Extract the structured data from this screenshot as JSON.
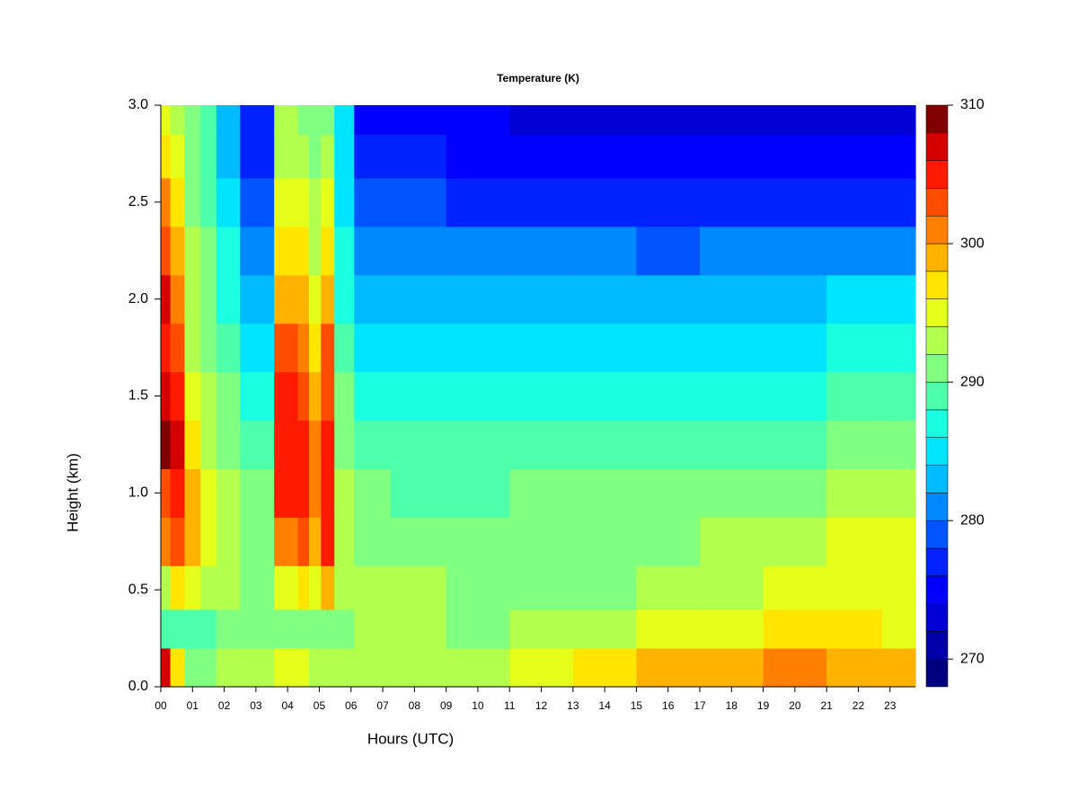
{
  "chart_data": {
    "type": "contour",
    "title": "Temperature (K)",
    "x_label": "Hours (UTC)",
    "y_label": "Height (km)",
    "x": [
      0.1,
      0.5,
      1.0,
      1.5,
      2.0,
      3.0,
      4.15,
      4.5,
      4.85,
      5.25,
      5.7,
      6.5,
      8,
      10,
      12,
      14,
      16,
      18,
      20,
      22,
      23.5
    ],
    "y": [
      0.1,
      0.3,
      0.5,
      0.75,
      1.0,
      1.25,
      1.5,
      1.75,
      2.0,
      2.25,
      2.5,
      2.75,
      2.95
    ],
    "z": [
      [
        306,
        296,
        290,
        290,
        292,
        292,
        294,
        294,
        292,
        292,
        292,
        292,
        292,
        292,
        294,
        296,
        298,
        298,
        300,
        298,
        298
      ],
      [
        288,
        288,
        288,
        288,
        290,
        290,
        290,
        290,
        290,
        290,
        290,
        292,
        292,
        290,
        292,
        292,
        294,
        294,
        296,
        296,
        294
      ],
      [
        292,
        296,
        294,
        292,
        292,
        290,
        294,
        296,
        294,
        298,
        292,
        292,
        292,
        290,
        290,
        290,
        292,
        292,
        294,
        294,
        294
      ],
      [
        300,
        302,
        298,
        294,
        292,
        290,
        300,
        302,
        298,
        304,
        292,
        290,
        290,
        290,
        290,
        290,
        290,
        292,
        292,
        294,
        294
      ],
      [
        302,
        304,
        298,
        294,
        292,
        290,
        304,
        304,
        300,
        304,
        292,
        290,
        288,
        288,
        290,
        290,
        290,
        290,
        290,
        292,
        292
      ],
      [
        308,
        306,
        296,
        292,
        290,
        288,
        304,
        304,
        300,
        304,
        290,
        288,
        288,
        288,
        288,
        288,
        288,
        288,
        288,
        290,
        290
      ],
      [
        306,
        304,
        294,
        292,
        290,
        286,
        304,
        302,
        298,
        302,
        290,
        286,
        286,
        286,
        286,
        286,
        286,
        286,
        286,
        288,
        288
      ],
      [
        304,
        302,
        292,
        290,
        288,
        284,
        302,
        300,
        296,
        302,
        288,
        284,
        284,
        284,
        284,
        284,
        284,
        284,
        284,
        286,
        286
      ],
      [
        306,
        300,
        292,
        290,
        286,
        282,
        298,
        298,
        294,
        298,
        286,
        282,
        282,
        282,
        282,
        282,
        282,
        282,
        282,
        284,
        284
      ],
      [
        302,
        298,
        292,
        290,
        286,
        280,
        296,
        296,
        292,
        296,
        286,
        280,
        280,
        280,
        280,
        280,
        278,
        280,
        280,
        280,
        280
      ],
      [
        300,
        296,
        290,
        288,
        284,
        278,
        294,
        294,
        292,
        294,
        284,
        278,
        278,
        276,
        276,
        276,
        276,
        276,
        276,
        276,
        276
      ],
      [
        296,
        294,
        290,
        288,
        282,
        276,
        292,
        292,
        290,
        292,
        284,
        276,
        276,
        274,
        274,
        274,
        274,
        274,
        274,
        274,
        274
      ],
      [
        294,
        292,
        290,
        288,
        282,
        276,
        292,
        290,
        290,
        290,
        284,
        274,
        274,
        274,
        272,
        272,
        272,
        272,
        272,
        272,
        272
      ]
    ],
    "levels": [
      268,
      270,
      272,
      274,
      276,
      278,
      280,
      282,
      284,
      286,
      288,
      290,
      292,
      294,
      296,
      298,
      300,
      302,
      304,
      306,
      308,
      310
    ],
    "colors": [
      "#00007F",
      "#0000AA",
      "#0000D4",
      "#0000FF",
      "#0022FF",
      "#0055FF",
      "#0088FF",
      "#00BBFF",
      "#00E5FF",
      "#1AFFE0",
      "#4DFFAA",
      "#80FF80",
      "#B3FF4D",
      "#E6FF1A",
      "#FFE600",
      "#FFB300",
      "#FF8000",
      "#FF4D00",
      "#FF1A00",
      "#D40000",
      "#800000"
    ],
    "xlim": [
      0,
      23.8
    ],
    "ylim": [
      0,
      3
    ],
    "xticks": [
      {
        "value": 0,
        "label": "00"
      },
      {
        "value": 1,
        "label": "01"
      },
      {
        "value": 2,
        "label": "02"
      },
      {
        "value": 3,
        "label": "03"
      },
      {
        "value": 4,
        "label": "04"
      },
      {
        "value": 5,
        "label": "05"
      },
      {
        "value": 6,
        "label": "06"
      },
      {
        "value": 7,
        "label": "07"
      },
      {
        "value": 8,
        "label": "08"
      },
      {
        "value": 9,
        "label": "09"
      },
      10,
      11,
      12,
      13,
      14,
      15,
      16,
      17,
      18,
      19,
      20,
      21,
      22,
      23
    ],
    "yticks": [
      {
        "value": 0,
        "label": "0.0"
      },
      0.5,
      {
        "value": 1,
        "label": "1.0"
      },
      1.5,
      {
        "value": 2,
        "label": "2.0"
      },
      2.5,
      {
        "value": 3,
        "label": "3.0"
      }
    ],
    "colorbar_ticks": [
      270,
      280,
      290,
      300,
      310
    ]
  }
}
